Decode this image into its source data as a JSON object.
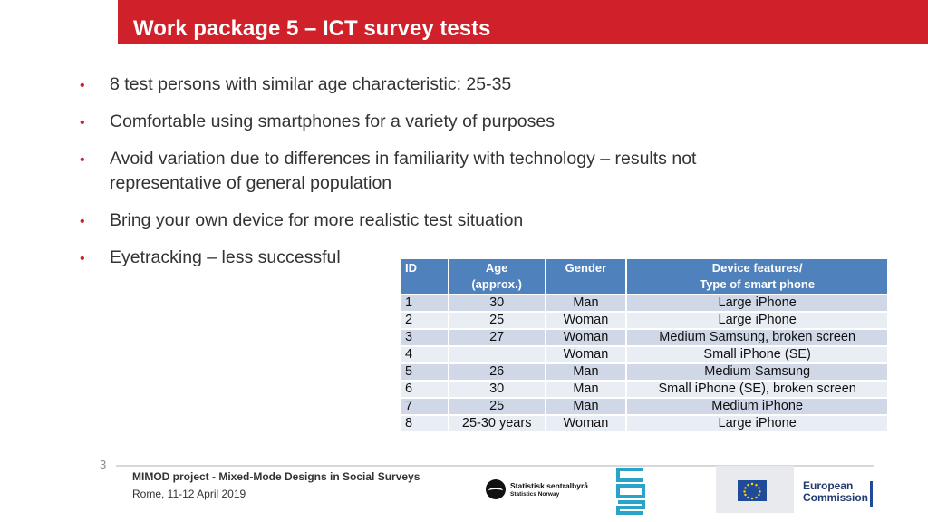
{
  "slide": {
    "title": "Work package 5 – ICT survey tests",
    "number": "3"
  },
  "bullets": [
    "8 test persons with similar age characteristic: 25-35",
    "Comfortable using smartphones for a variety of purposes",
    "Avoid variation due to differences in familiarity with technology – results not representative of general population",
    "Bring your own device for more realistic test situation",
    "Eyetracking – less successful"
  ],
  "bullet_marker": "•",
  "table": {
    "headers": {
      "id": "ID",
      "age_line1": "Age",
      "age_line2": "(approx.)",
      "gender": "Gender",
      "device_line1": "Device features/",
      "device_line2": "Type of smart phone"
    },
    "rows": [
      {
        "id": "1",
        "age": "30",
        "gender": "Man",
        "device": "Large iPhone"
      },
      {
        "id": "2",
        "age": "25",
        "gender": "Woman",
        "device": "Large iPhone"
      },
      {
        "id": "3",
        "age": "27",
        "gender": "Woman",
        "device": "Medium Samsung, broken screen"
      },
      {
        "id": "4",
        "age": "",
        "gender": "Woman",
        "device": "Small iPhone (SE)"
      },
      {
        "id": "5",
        "age": "26",
        "gender": "Man",
        "device": "Medium Samsung"
      },
      {
        "id": "6",
        "age": "30",
        "gender": "Man",
        "device": "Small iPhone (SE), broken screen"
      },
      {
        "id": "7",
        "age": "25",
        "gender": "Man",
        "device": "Medium iPhone"
      },
      {
        "id": "8",
        "age": "25-30 years",
        "gender": "Woman",
        "device": "Large iPhone"
      }
    ]
  },
  "footer": {
    "project": "MIMOD project - Mixed-Mode Designs in Social Surveys",
    "place_date": "Rome, 11-12 April 2019"
  },
  "logos": {
    "ssb_name": "Statistisk sentralbyrå",
    "ssb_sub": "Statistics Norway",
    "ec_line1": "European",
    "ec_line2": "Commission"
  },
  "colors": {
    "accent_red": "#d0202a",
    "table_header": "#4f81bd",
    "table_row_odd": "#d0d8e8",
    "table_row_even": "#e9edf4",
    "cbs_blue": "#29a3c9",
    "eu_blue": "#1f4b9a",
    "eu_gold": "#ffd617"
  }
}
